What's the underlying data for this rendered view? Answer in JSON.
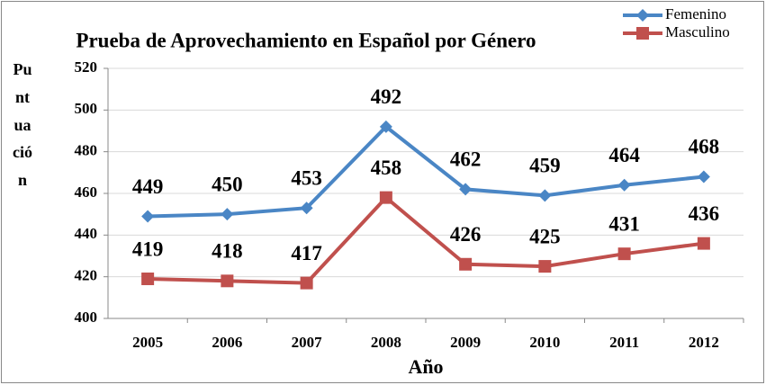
{
  "chart_data": {
    "type": "line",
    "title": "Prueba de Aprovechamiento en Español por Género",
    "x_label": "Año",
    "y_label": "Puntuación",
    "categories": [
      "2005",
      "2006",
      "2007",
      "2008",
      "2009",
      "2010",
      "2011",
      "2012"
    ],
    "series": [
      {
        "name": "Femenino",
        "color": "#4a86c5",
        "marker": "diamond",
        "values": [
          449,
          450,
          453,
          492,
          462,
          459,
          464,
          468
        ]
      },
      {
        "name": "Masculino",
        "color": "#c0504d",
        "marker": "square",
        "values": [
          419,
          418,
          417,
          458,
          426,
          425,
          431,
          436
        ]
      }
    ],
    "ylim": [
      400,
      520
    ],
    "yticks": [
      400,
      420,
      440,
      460,
      480,
      500,
      520
    ],
    "grid": true,
    "legend": "top-right"
  }
}
